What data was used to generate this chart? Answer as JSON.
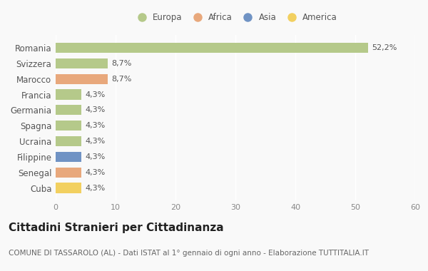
{
  "countries": [
    "Romania",
    "Svizzera",
    "Marocco",
    "Francia",
    "Germania",
    "Spagna",
    "Ucraina",
    "Filippine",
    "Senegal",
    "Cuba"
  ],
  "values": [
    52.2,
    8.7,
    8.7,
    4.3,
    4.3,
    4.3,
    4.3,
    4.3,
    4.3,
    4.3
  ],
  "labels": [
    "52,2%",
    "8,7%",
    "8,7%",
    "4,3%",
    "4,3%",
    "4,3%",
    "4,3%",
    "4,3%",
    "4,3%",
    "4,3%"
  ],
  "continents": [
    "Europa",
    "Europa",
    "Africa",
    "Europa",
    "Europa",
    "Europa",
    "Europa",
    "Asia",
    "Africa",
    "America"
  ],
  "colors": {
    "Europa": "#b5c98a",
    "Africa": "#e8a87c",
    "Asia": "#7093c4",
    "America": "#f2d060"
  },
  "legend_order": [
    "Europa",
    "Africa",
    "Asia",
    "America"
  ],
  "legend_colors": [
    "#b5c98a",
    "#e8a87c",
    "#7093c4",
    "#f2d060"
  ],
  "xlim": [
    0,
    60
  ],
  "xticks": [
    0,
    10,
    20,
    30,
    40,
    50,
    60
  ],
  "title": "Cittadini Stranieri per Cittadinanza",
  "subtitle": "COMUNE DI TASSAROLO (AL) - Dati ISTAT al 1° gennaio di ogni anno - Elaborazione TUTTITALIA.IT",
  "background_color": "#f9f9f9",
  "bar_height": 0.65,
  "label_fontsize": 8,
  "ytick_fontsize": 8.5,
  "xtick_fontsize": 8,
  "title_fontsize": 11,
  "subtitle_fontsize": 7.5,
  "legend_fontsize": 8.5
}
